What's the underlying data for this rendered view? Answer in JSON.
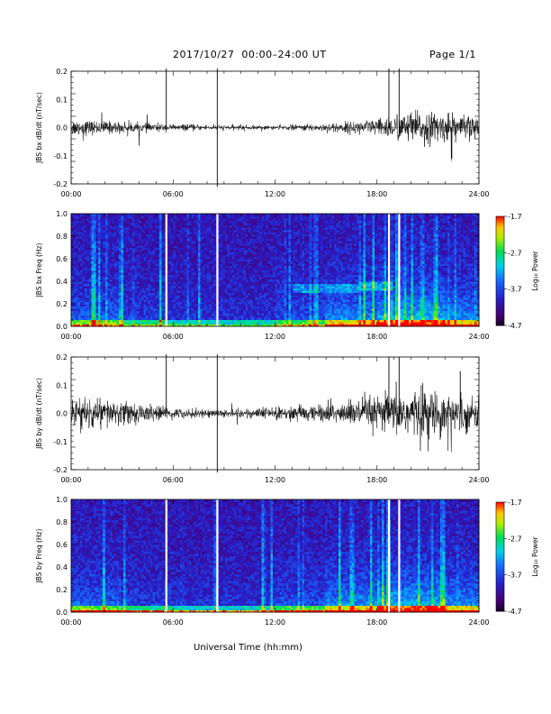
{
  "header": {
    "title": "2017/10/27  00:00–24:00 UT",
    "page": "Page 1/1"
  },
  "footer": {
    "xlabel": "Universal Time (hh:mm)"
  },
  "colorbar": {
    "label": "Log₁₀ Power",
    "ticks": [
      "-1.7",
      "-2.7",
      "-3.7",
      "-4.7"
    ],
    "range": [
      -4.7,
      -1.7
    ]
  },
  "chart_data": [
    {
      "type": "line",
      "panel": "bx-timeseries",
      "ylabel": "JBS bx dB/dt (nT/sec)",
      "xlim": [
        0,
        24
      ],
      "ylim": [
        -0.2,
        0.2
      ],
      "xticks": [
        "00:00",
        "06:00",
        "12:00",
        "18:00",
        "24:00"
      ],
      "yticks": [
        "0.2",
        "0.1",
        "0.0",
        "-0.1",
        "-0.2"
      ],
      "noise_envelope": [
        {
          "x": 0,
          "amp": 0.02
        },
        {
          "x": 6,
          "amp": 0.008
        },
        {
          "x": 9,
          "amp": 0.006
        },
        {
          "x": 12,
          "amp": 0.005
        },
        {
          "x": 15,
          "amp": 0.01
        },
        {
          "x": 18,
          "amp": 0.02
        },
        {
          "x": 20,
          "amp": 0.04
        },
        {
          "x": 22,
          "amp": 0.035
        },
        {
          "x": 24,
          "amp": 0.025
        }
      ],
      "spikes": [
        {
          "x": 5.6,
          "y": 0.21
        },
        {
          "x": 8.6,
          "y": 0.21
        },
        {
          "x": 8.6,
          "y": -0.21
        },
        {
          "x": 18.7,
          "y": 0.21
        },
        {
          "x": 19.3,
          "y": 0.21
        },
        {
          "x": 22.4,
          "y": -0.11
        }
      ]
    },
    {
      "type": "heatmap",
      "panel": "bx-spectrogram",
      "ylabel": "JBS bx Freq (Hz)",
      "xlim": [
        0,
        24
      ],
      "ylim": [
        0,
        1.0
      ],
      "xticks": [
        "00:00",
        "06:00",
        "12:00",
        "18:00",
        "24:00"
      ],
      "yticks": [
        "1.0",
        "0.8",
        "0.6",
        "0.4",
        "0.2",
        "0.0"
      ],
      "value_unit": "Log10 Power",
      "value_range": [
        -4.7,
        -1.7
      ],
      "data_gaps": [
        5.6,
        8.6,
        18.7,
        19.3
      ]
    },
    {
      "type": "line",
      "panel": "by-timeseries",
      "ylabel": "JBS by dB/dt (nT/sec)",
      "xlim": [
        0,
        24
      ],
      "ylim": [
        -0.2,
        0.2
      ],
      "xticks": [
        "00:00",
        "06:00",
        "12:00",
        "18:00",
        "24:00"
      ],
      "yticks": [
        "0.2",
        "0.1",
        "0.0",
        "-0.1",
        "-0.2"
      ],
      "noise_envelope": [
        {
          "x": 0,
          "amp": 0.04
        },
        {
          "x": 3,
          "amp": 0.03
        },
        {
          "x": 6,
          "amp": 0.012
        },
        {
          "x": 9,
          "amp": 0.01
        },
        {
          "x": 12,
          "amp": 0.015
        },
        {
          "x": 15,
          "amp": 0.022
        },
        {
          "x": 18,
          "amp": 0.04
        },
        {
          "x": 20,
          "amp": 0.06
        },
        {
          "x": 22,
          "amp": 0.05
        },
        {
          "x": 24,
          "amp": 0.035
        }
      ],
      "spikes": [
        {
          "x": 5.6,
          "y": 0.21
        },
        {
          "x": 8.6,
          "y": 0.21
        },
        {
          "x": 8.6,
          "y": -0.21
        },
        {
          "x": 18.7,
          "y": 0.2
        },
        {
          "x": 19.3,
          "y": 0.2
        },
        {
          "x": 22.9,
          "y": 0.15
        }
      ]
    },
    {
      "type": "heatmap",
      "panel": "by-spectrogram",
      "ylabel": "JBS by Freq (Hz)",
      "xlim": [
        0,
        24
      ],
      "ylim": [
        0,
        1.0
      ],
      "xticks": [
        "00:00",
        "06:00",
        "12:00",
        "18:00",
        "24:00"
      ],
      "yticks": [
        "1.0",
        "0.8",
        "0.6",
        "0.4",
        "0.2",
        "0.0"
      ],
      "value_unit": "Log10 Power",
      "value_range": [
        -4.7,
        -1.7
      ],
      "data_gaps": [
        5.6,
        8.6,
        18.7,
        19.3
      ]
    }
  ]
}
